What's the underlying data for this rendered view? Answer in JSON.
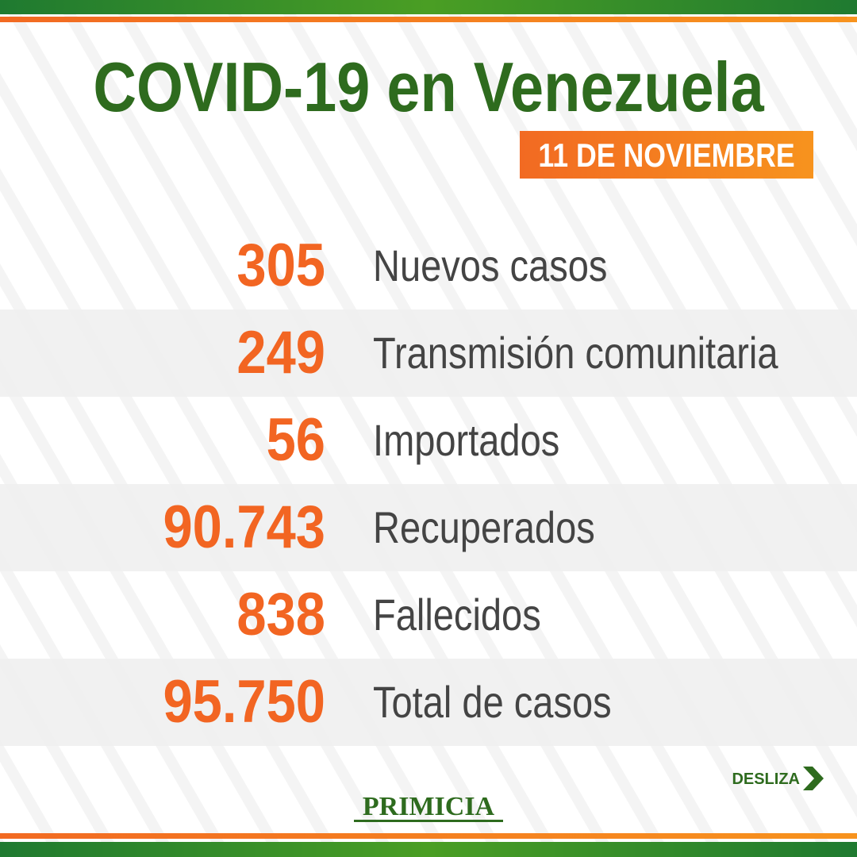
{
  "header": {
    "title": "COVID-19 en Venezuela",
    "date": "11 DE NOVIEMBRE"
  },
  "rows": [
    {
      "value": "305",
      "label": "Nuevos casos"
    },
    {
      "value": "249",
      "label": "Transmisión comunitaria"
    },
    {
      "value": "56",
      "label": "Importados"
    },
    {
      "value": "90.743",
      "label": "Recuperados"
    },
    {
      "value": "838",
      "label": "Fallecidos"
    },
    {
      "value": "95.750",
      "label": "Total de casos"
    }
  ],
  "footer": {
    "swipe": "DESLIZA",
    "brand": "PRIMICIA"
  }
}
